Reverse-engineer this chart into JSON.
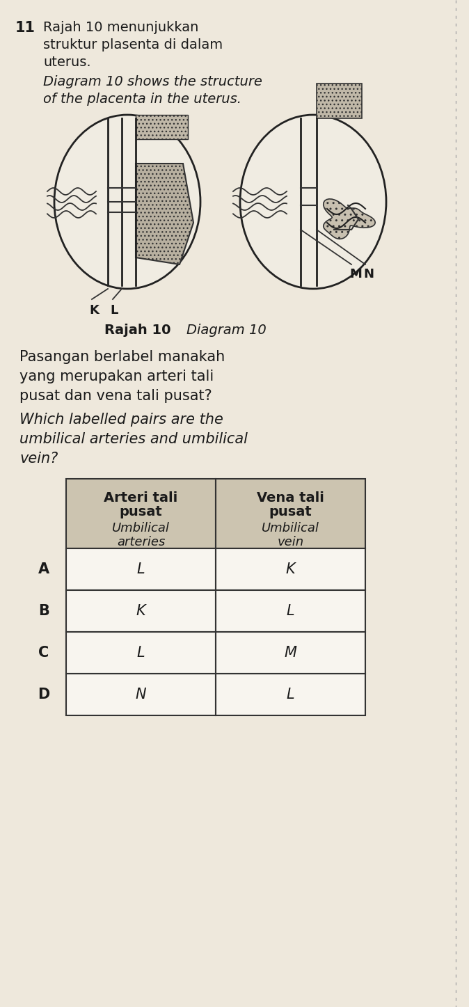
{
  "question_number": "11",
  "line1_ms": "Rajah 10 menunjukkan",
  "line2_ms": "struktur plasenta di dalam",
  "line3_ms": "uterus.",
  "line1_en": "Diagram 10 shows the structure",
  "line2_en": "of the placenta in the uterus.",
  "diagram_caption_bold": "Rajah 10",
  "diagram_caption_italic": "Diagram 10",
  "left_labels": [
    "K",
    "L"
  ],
  "right_labels": [
    "M",
    "N"
  ],
  "q_ms_1": "Pasangan berlabel manakah",
  "q_ms_2": "yang merupakan arteri tali",
  "q_ms_3": "pusat dan vena tali pusat?",
  "q_en_1": "Which labelled pairs are the",
  "q_en_2": "umbilical arteries and umbilical",
  "q_en_3": "vein?",
  "col1_line1": "Arteri tali",
  "col1_line2": "pusat",
  "col1_line3": "Umbilical",
  "col1_line4": "arteries",
  "col2_line1": "Vena tali",
  "col2_line2": "pusat",
  "col2_line3": "Umbilical",
  "col2_line4": "vein",
  "rows": [
    {
      "option": "A",
      "col1": "L",
      "col2": "K"
    },
    {
      "option": "B",
      "col1": "K",
      "col2": "L"
    },
    {
      "option": "C",
      "col1": "L",
      "col2": "M"
    },
    {
      "option": "D",
      "col1": "N",
      "col2": "L"
    }
  ],
  "bg_color": "#eee8dc",
  "table_header_bg": "#ccc4b0",
  "text_color": "#1a1a1a",
  "table_border": "#333333",
  "dashed_border_color": "#aaaaaa"
}
